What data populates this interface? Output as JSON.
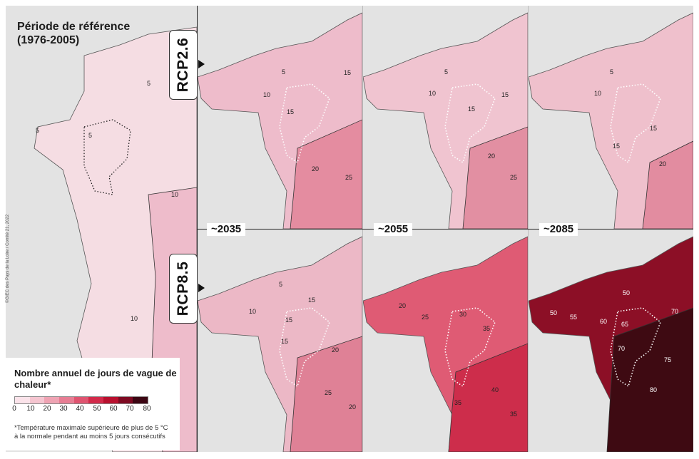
{
  "reference": {
    "title_line1": "Période de référence",
    "title_line2": "(1976-2005)"
  },
  "scenarios": {
    "low": "RCP2.6",
    "high": "RCP8.5"
  },
  "periods": {
    "p1": "~2035",
    "p2": "~2055",
    "p3": "~2085"
  },
  "copyright": "©GIEC des Pays de la Loire / Comité 21, 2022",
  "legend": {
    "title": "Nombre annuel de jours de vague de chaleur*",
    "ticks": [
      "0",
      "10",
      "20",
      "30",
      "40",
      "50",
      "60",
      "70",
      "80"
    ],
    "colors": [
      "#fbe3ea",
      "#f5c5d0",
      "#efa3b3",
      "#e77d93",
      "#df5470",
      "#d22a4a",
      "#b8102e",
      "#7e0a22",
      "#3c0613"
    ],
    "note_line1": "*Température maximale supérieure de plus de 5 °C",
    "note_line2": "à la normale pendant au moins 5 jours consécutifs"
  },
  "maps": {
    "reference": {
      "fill": "#f5dde3",
      "east_fill": "#eebccb",
      "contours": [
        "5",
        "5",
        "5",
        "10",
        "10"
      ]
    },
    "rcp26_2035": {
      "fill": "#eebccb",
      "east_fill": "#e48ca0",
      "contours": [
        "5",
        "10",
        "15",
        "15",
        "20",
        "25"
      ]
    },
    "rcp26_2055": {
      "fill": "#f0c4d0",
      "east_fill": "#e28fa2",
      "contours": [
        "5",
        "10",
        "15",
        "20",
        "15",
        "25"
      ]
    },
    "rcp26_2085": {
      "fill": "#efc0cc",
      "east_fill": "#e28ca0",
      "contours": [
        "5",
        "10",
        "15",
        "15",
        "20"
      ]
    },
    "rcp85_2035": {
      "fill": "#ecb8c6",
      "east_fill": "#df8196",
      "contours": [
        "5",
        "10",
        "15",
        "15",
        "15",
        "20",
        "25",
        "20"
      ]
    },
    "rcp85_2055": {
      "fill": "#df5b74",
      "east_fill": "#cd2d4b",
      "contours": [
        "20",
        "25",
        "30",
        "35",
        "35",
        "40",
        "35"
      ]
    },
    "rcp85_2085": {
      "fill": "#8c0f26",
      "east_fill": "#3e0a12",
      "contours": [
        "50",
        "50",
        "55",
        "60",
        "65",
        "70",
        "70",
        "75",
        "80"
      ]
    }
  }
}
